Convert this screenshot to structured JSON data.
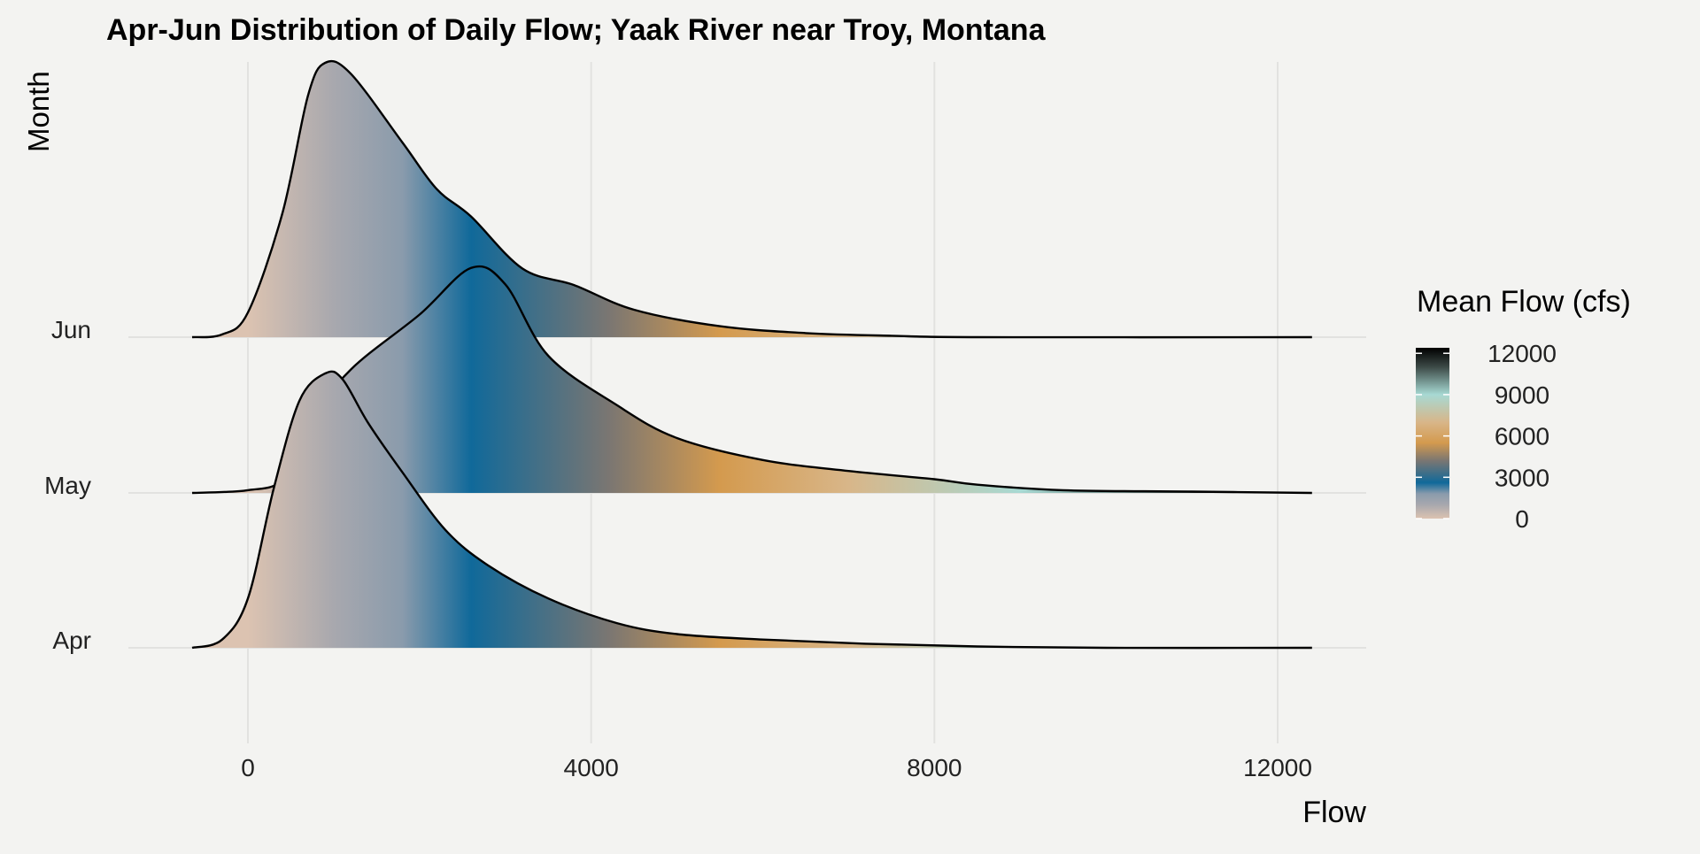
{
  "chart_data": {
    "type": "ridgeline",
    "title": "Apr-Jun Distribution of Daily Flow; Yaak River near Troy, Montana",
    "xlabel": "Flow",
    "ylabel": "Month",
    "xlim": [
      -1400,
      13000
    ],
    "x_ticks": [
      0,
      4000,
      8000,
      12000
    ],
    "x_tick_labels": [
      "0",
      "4000",
      "8000",
      "12000"
    ],
    "grid": true,
    "legend": {
      "title": "Mean Flow (cfs)",
      "placement": "right",
      "ticks": [
        0,
        3000,
        6000,
        9000,
        12000
      ],
      "tick_labels": [
        "0",
        "3000",
        "6000",
        "9000",
        "12000"
      ],
      "colors": [
        {
          "value": 0,
          "color": "#dcc3b1"
        },
        {
          "value": 1000,
          "color": "#a8a8ae"
        },
        {
          "value": 1800,
          "color": "#8a9bac"
        },
        {
          "value": 2600,
          "color": "#10699a"
        },
        {
          "value": 4200,
          "color": "#7a7672"
        },
        {
          "value": 5500,
          "color": "#d49a4e"
        },
        {
          "value": 7000,
          "color": "#d8b689"
        },
        {
          "value": 9000,
          "color": "#a7d9d3"
        },
        {
          "value": 11000,
          "color": "#3d4a47"
        },
        {
          "value": 12400,
          "color": "#000000"
        }
      ]
    },
    "series": [
      {
        "name": "Apr",
        "x": [
          -650,
          -300,
          0,
          300,
          600,
          900,
          1100,
          1400,
          1800,
          2300,
          2800,
          3500,
          4300,
          5000,
          6000,
          7200,
          8500,
          10000,
          12400
        ],
        "density": [
          0.0,
          0.03,
          0.18,
          0.58,
          0.9,
          1.0,
          0.98,
          0.82,
          0.64,
          0.43,
          0.3,
          0.18,
          0.09,
          0.05,
          0.03,
          0.015,
          0.005,
          0.0,
          0.0
        ]
      },
      {
        "name": "May",
        "x": [
          -650,
          0,
          400,
          700,
          1200,
          2000,
          2600,
          3000,
          3500,
          4300,
          5000,
          6000,
          7000,
          8000,
          8500,
          9500,
          11000,
          12400
        ],
        "density": [
          0.0,
          0.01,
          0.05,
          0.25,
          0.45,
          0.65,
          0.82,
          0.76,
          0.5,
          0.32,
          0.2,
          0.12,
          0.08,
          0.05,
          0.03,
          0.01,
          0.005,
          0.0
        ]
      },
      {
        "name": "Jun",
        "x": [
          -650,
          -300,
          0,
          400,
          700,
          900,
          1200,
          1800,
          2200,
          2600,
          3200,
          3800,
          4500,
          5500,
          6500,
          7500,
          8500,
          12400
        ],
        "density": [
          0.0,
          0.01,
          0.09,
          0.45,
          0.88,
          1.0,
          0.96,
          0.71,
          0.54,
          0.44,
          0.25,
          0.19,
          0.1,
          0.04,
          0.015,
          0.005,
          0.0,
          0.0
        ]
      }
    ]
  }
}
